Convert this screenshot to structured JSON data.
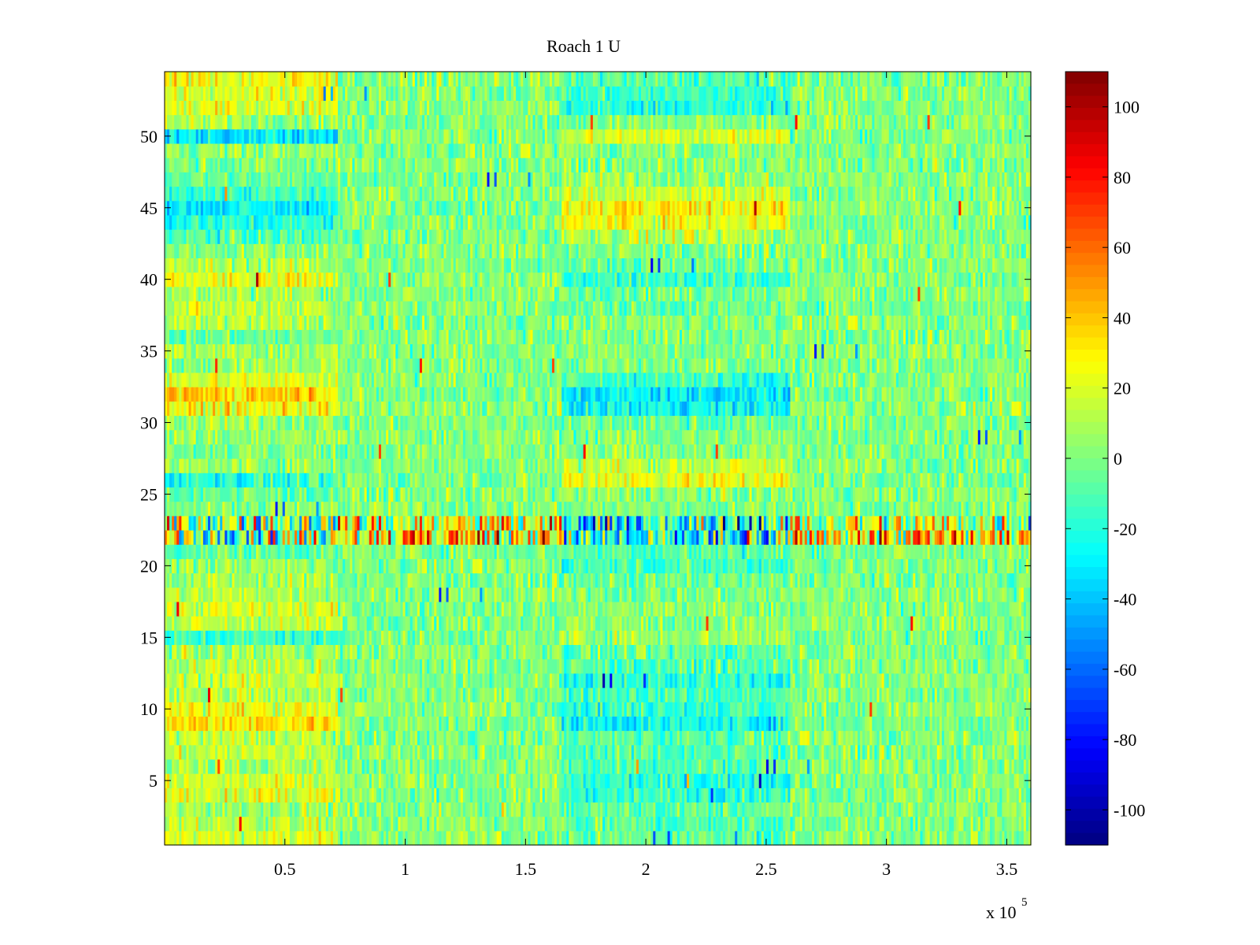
{
  "chart_data": {
    "type": "heatmap",
    "title": "Roach 1 U",
    "xlabel": "",
    "ylabel": "",
    "x_exponent_label": "x 10",
    "x_exponent_power": "5",
    "xlim": [
      0,
      3.6
    ],
    "ylim": [
      0.5,
      54.5
    ],
    "x_ticks": [
      0.5,
      1,
      1.5,
      2,
      2.5,
      3,
      3.5
    ],
    "x_tick_labels": [
      "0.5",
      "1",
      "1.5",
      "2",
      "2.5",
      "3",
      "3.5"
    ],
    "y_ticks": [
      5,
      10,
      15,
      20,
      25,
      30,
      35,
      40,
      45,
      50
    ],
    "y_tick_labels": [
      "5",
      "10",
      "15",
      "20",
      "25",
      "30",
      "35",
      "40",
      "45",
      "50"
    ],
    "rows": 54,
    "colormap": "jet",
    "clim": [
      -110,
      110
    ],
    "colorbar_ticks": [
      100,
      80,
      60,
      40,
      20,
      0,
      -20,
      -40,
      -60,
      -80,
      -100
    ],
    "colorbar_tick_labels": [
      "100",
      "80",
      "60",
      "40",
      "20",
      "0",
      "-20",
      "-40",
      "-60",
      "-80",
      "-100"
    ],
    "segments_x": [
      0,
      0.72,
      1.65,
      2.6,
      3.6
    ],
    "row_segment_means": [
      [
        18,
        2,
        -5,
        2
      ],
      [
        12,
        0,
        -10,
        0
      ],
      [
        8,
        2,
        -8,
        2
      ],
      [
        22,
        0,
        -15,
        2
      ],
      [
        15,
        2,
        -20,
        0
      ],
      [
        8,
        0,
        -8,
        2
      ],
      [
        14,
        2,
        -10,
        0
      ],
      [
        12,
        0,
        -8,
        2
      ],
      [
        35,
        0,
        -25,
        0
      ],
      [
        25,
        2,
        -15,
        2
      ],
      [
        10,
        0,
        -12,
        0
      ],
      [
        15,
        2,
        -20,
        2
      ],
      [
        12,
        0,
        -10,
        0
      ],
      [
        8,
        2,
        -8,
        2
      ],
      [
        -15,
        0,
        8,
        0
      ],
      [
        12,
        2,
        2,
        2
      ],
      [
        18,
        0,
        2,
        0
      ],
      [
        12,
        2,
        0,
        2
      ],
      [
        8,
        0,
        -5,
        0
      ],
      [
        5,
        0,
        -12,
        0
      ],
      [
        -5,
        0,
        -8,
        0
      ],
      [
        10,
        40,
        -30,
        35
      ],
      [
        5,
        20,
        -25,
        15
      ],
      [
        2,
        2,
        0,
        0
      ],
      [
        -5,
        0,
        2,
        2
      ],
      [
        -20,
        0,
        25,
        0
      ],
      [
        5,
        2,
        15,
        2
      ],
      [
        0,
        0,
        2,
        0
      ],
      [
        4,
        2,
        0,
        2
      ],
      [
        5,
        0,
        -5,
        0
      ],
      [
        25,
        2,
        -25,
        2
      ],
      [
        38,
        0,
        -30,
        0
      ],
      [
        22,
        2,
        -15,
        2
      ],
      [
        5,
        0,
        0,
        0
      ],
      [
        8,
        0,
        2,
        2
      ],
      [
        -5,
        2,
        0,
        0
      ],
      [
        10,
        0,
        2,
        2
      ],
      [
        15,
        2,
        -5,
        0
      ],
      [
        8,
        0,
        0,
        2
      ],
      [
        22,
        2,
        -15,
        0
      ],
      [
        10,
        0,
        -5,
        2
      ],
      [
        2,
        2,
        0,
        0
      ],
      [
        -10,
        0,
        10,
        2
      ],
      [
        -20,
        2,
        25,
        0
      ],
      [
        -30,
        0,
        30,
        2
      ],
      [
        -15,
        2,
        15,
        0
      ],
      [
        -5,
        0,
        5,
        2
      ],
      [
        0,
        2,
        0,
        0
      ],
      [
        5,
        0,
        2,
        2
      ],
      [
        -30,
        2,
        20,
        0
      ],
      [
        8,
        0,
        0,
        2
      ],
      [
        20,
        2,
        -20,
        0
      ],
      [
        22,
        0,
        -15,
        2
      ],
      [
        25,
        2,
        -10,
        0
      ]
    ]
  }
}
